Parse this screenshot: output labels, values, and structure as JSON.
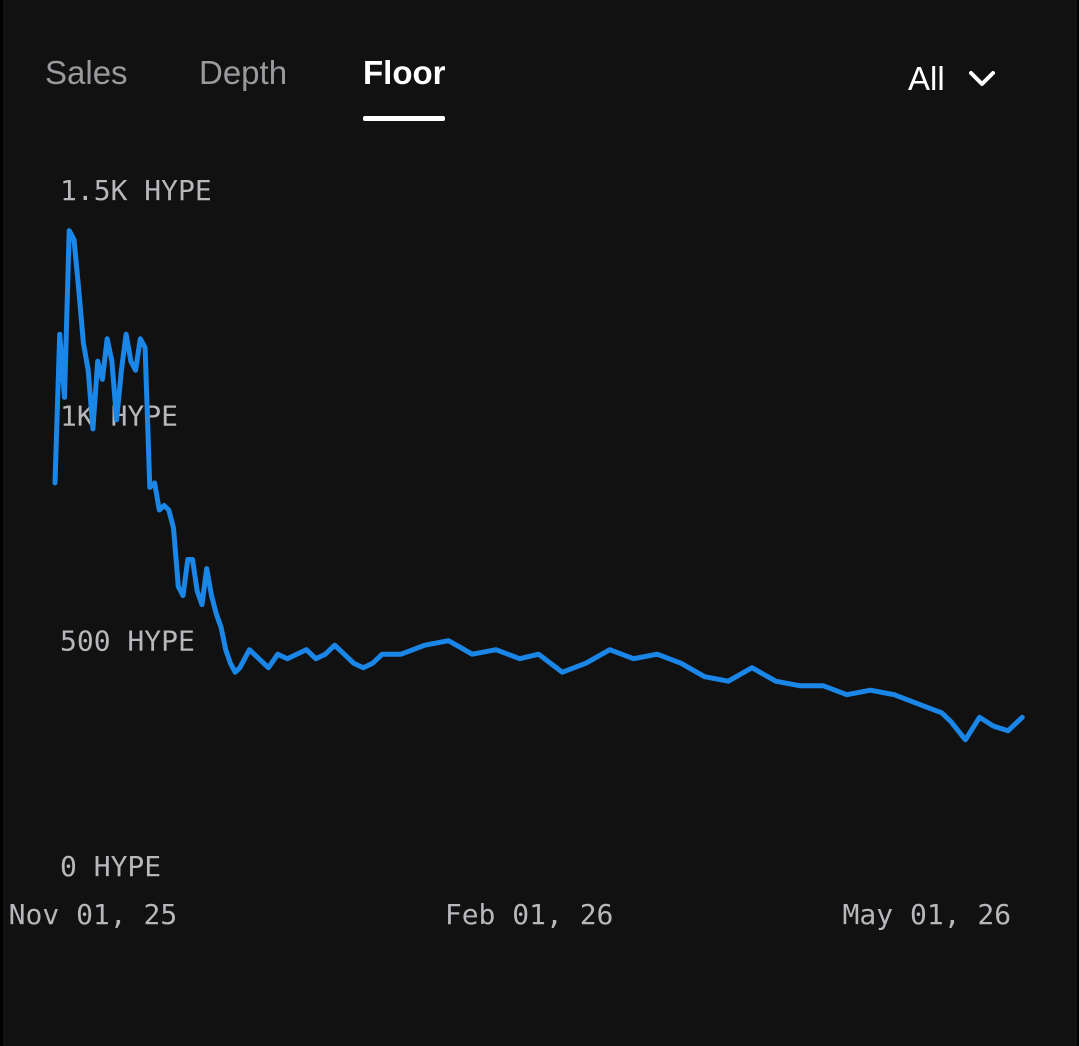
{
  "tabs": [
    {
      "label": "Sales",
      "active": false
    },
    {
      "label": "Depth",
      "active": false
    },
    {
      "label": "Floor",
      "active": true
    }
  ],
  "range": {
    "selected": "All"
  },
  "colors": {
    "line": "#1a86e8",
    "background": "#111112",
    "axis_text": "#b8b8bc"
  },
  "chart_data": {
    "type": "line",
    "title": "",
    "xlabel": "",
    "ylabel": "",
    "ylim": [
      0,
      1500
    ],
    "xlim": [
      "2025-10-24",
      "2026-05-17"
    ],
    "y_ticks": [
      {
        "value": 0,
        "label": "0 HYPE"
      },
      {
        "value": 500,
        "label": "500 HYPE"
      },
      {
        "value": 1000,
        "label": "1K HYPE"
      },
      {
        "value": 1500,
        "label": "1.5K HYPE"
      }
    ],
    "x_ticks": [
      {
        "value": "2025-11-01",
        "label": "Nov 01, 25"
      },
      {
        "value": "2026-02-01",
        "label": "Feb 01, 26"
      },
      {
        "value": "2026-05-01",
        "label": "May 01, 26"
      }
    ],
    "grid": false,
    "series": [
      {
        "x": [
          "2025-10-24",
          "2025-10-25",
          "2025-10-26",
          "2025-10-27",
          "2025-10-28",
          "2025-10-29",
          "2025-10-30",
          "2025-10-31",
          "2025-11-01",
          "2025-11-02",
          "2025-11-03",
          "2025-11-04",
          "2025-11-05",
          "2025-11-06",
          "2025-11-07",
          "2025-11-08",
          "2025-11-09",
          "2025-11-10",
          "2025-11-11",
          "2025-11-12",
          "2025-11-13",
          "2025-11-14",
          "2025-11-15",
          "2025-11-16",
          "2025-11-17",
          "2025-11-18",
          "2025-11-19",
          "2025-11-20",
          "2025-11-21",
          "2025-11-22",
          "2025-11-23",
          "2025-11-24",
          "2025-11-25",
          "2025-11-26",
          "2025-11-27",
          "2025-11-28",
          "2025-11-29",
          "2025-11-30",
          "2025-12-01",
          "2025-12-02",
          "2025-12-04",
          "2025-12-06",
          "2025-12-08",
          "2025-12-10",
          "2025-12-12",
          "2025-12-14",
          "2025-12-16",
          "2025-12-18",
          "2025-12-20",
          "2025-12-22",
          "2025-12-24",
          "2025-12-26",
          "2025-12-28",
          "2025-12-30",
          "2026-01-01",
          "2026-01-05",
          "2026-01-10",
          "2026-01-15",
          "2026-01-20",
          "2026-01-25",
          "2026-01-30",
          "2026-02-03",
          "2026-02-08",
          "2026-02-13",
          "2026-02-18",
          "2026-02-23",
          "2026-02-28",
          "2026-03-05",
          "2026-03-10",
          "2026-03-15",
          "2026-03-20",
          "2026-03-25",
          "2026-03-30",
          "2026-04-04",
          "2026-04-09",
          "2026-04-14",
          "2026-04-19",
          "2026-04-24",
          "2026-04-29",
          "2026-05-01",
          "2026-05-04",
          "2026-05-07",
          "2026-05-10",
          "2026-05-13",
          "2026-05-16"
        ],
        "y": [
          850,
          1180,
          1040,
          1410,
          1390,
          1280,
          1160,
          1100,
          970,
          1120,
          1080,
          1170,
          1120,
          990,
          1100,
          1180,
          1120,
          1100,
          1170,
          1150,
          840,
          850,
          790,
          800,
          790,
          750,
          620,
          600,
          680,
          680,
          610,
          580,
          660,
          600,
          560,
          530,
          480,
          450,
          430,
          440,
          480,
          460,
          440,
          470,
          460,
          470,
          480,
          460,
          470,
          490,
          470,
          450,
          440,
          450,
          470,
          470,
          490,
          500,
          470,
          480,
          460,
          470,
          430,
          450,
          480,
          460,
          470,
          450,
          420,
          410,
          440,
          410,
          400,
          400,
          380,
          390,
          380,
          360,
          340,
          320,
          280,
          330,
          310,
          300,
          330
        ]
      }
    ]
  }
}
